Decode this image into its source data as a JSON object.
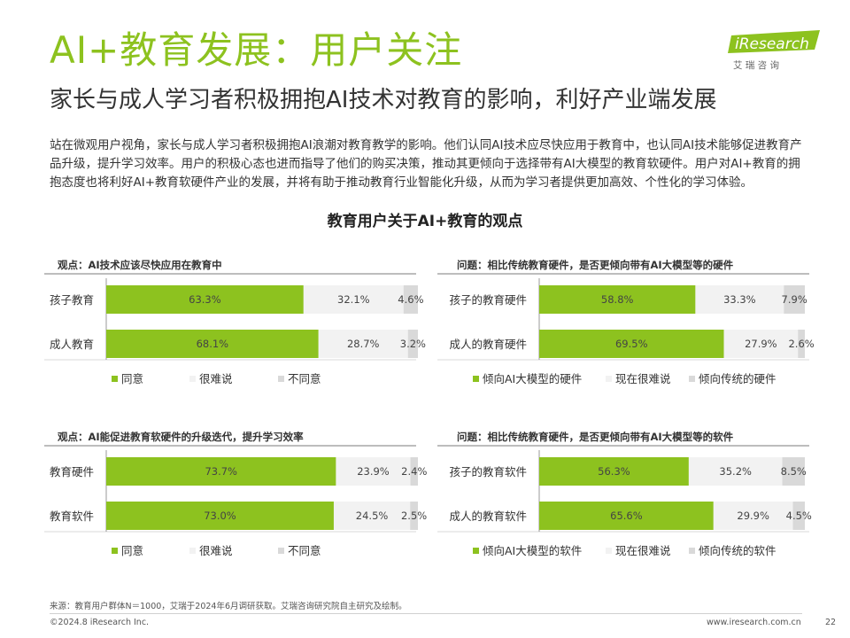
{
  "header": {
    "title": "AI+教育发展：用户关注",
    "subtitle": "家长与成人学习者积极拥抱AI技术对教育的影响，利好产业端发展",
    "logo_text": "iResearch",
    "logo_subtext": "艾 瑞 咨 询"
  },
  "body_text": "站在微观用户视角，家长与成人学习者积极拥抱AI浪潮对教育教学的影响。他们认同AI技术应尽快应用于教育中，也认同AI技术能够促进教育产品升级，提升学习效率。用户的积极心态也进而指导了他们的购买决策，推动其更倾向于选择带有AI大模型的教育软硬件。用户对AI+教育的拥抱态度也将利好AI+教育软硬件产业的发展，并将有助于推动教育行业智能化升级，从而为学习者提供更加高效、个性化的学习体验。",
  "main_chart_title": "教育用户关于AI+教育的观点",
  "colors": {
    "green": "#8dc21f",
    "light_gray": "#f2f2f2",
    "mid_gray": "#d9d9d9",
    "axis": "#999999"
  },
  "chart_data": [
    {
      "type": "bar",
      "stacked": true,
      "orientation": "horizontal",
      "title": "观点：AI技术应该尽快应用在教育中",
      "categories": [
        "孩子教育",
        "成人教育"
      ],
      "series": [
        {
          "name": "同意",
          "values": [
            63.3,
            68.1
          ]
        },
        {
          "name": "很难说",
          "values": [
            32.1,
            28.7
          ]
        },
        {
          "name": "不同意",
          "values": [
            4.6,
            3.2
          ]
        }
      ],
      "labels": [
        [
          "63.3%",
          "32.1%",
          "4.6%"
        ],
        [
          "68.1%",
          "28.7%",
          "3.2%"
        ]
      ],
      "xlim": [
        0,
        100
      ],
      "legend": "bottom"
    },
    {
      "type": "bar",
      "stacked": true,
      "orientation": "horizontal",
      "title": "问题：相比传统教育硬件，是否更倾向带有AI大模型等的硬件",
      "categories": [
        "孩子的教育硬件",
        "成人的教育硬件"
      ],
      "series": [
        {
          "name": "倾向AI大模型的硬件",
          "values": [
            58.8,
            69.5
          ]
        },
        {
          "name": "现在很难说",
          "values": [
            33.3,
            27.9
          ]
        },
        {
          "name": "倾向传统的硬件",
          "values": [
            7.9,
            2.6
          ]
        }
      ],
      "labels": [
        [
          "58.8%",
          "33.3%",
          "7.9%"
        ],
        [
          "69.5%",
          "27.9%",
          "2.6%"
        ]
      ],
      "xlim": [
        0,
        100
      ],
      "legend": "bottom"
    },
    {
      "type": "bar",
      "stacked": true,
      "orientation": "horizontal",
      "title": "观点：AI能促进教育软硬件的升级迭代，提升学习效率",
      "categories": [
        "教育硬件",
        "教育软件"
      ],
      "series": [
        {
          "name": "同意",
          "values": [
            73.7,
            73.0
          ]
        },
        {
          "name": "很难说",
          "values": [
            23.9,
            24.5
          ]
        },
        {
          "name": "不同意",
          "values": [
            2.4,
            2.5
          ]
        }
      ],
      "labels": [
        [
          "73.7%",
          "23.9%",
          "2.4%"
        ],
        [
          "73.0%",
          "24.5%",
          "2.5%"
        ]
      ],
      "xlim": [
        0,
        100
      ],
      "legend": "bottom"
    },
    {
      "type": "bar",
      "stacked": true,
      "orientation": "horizontal",
      "title": "问题：相比传统教育硬件，是否更倾向带有AI大模型等的软件",
      "categories": [
        "孩子的教育软件",
        "成人的教育软件"
      ],
      "series": [
        {
          "name": "倾向AI大模型的软件",
          "values": [
            56.3,
            65.6
          ]
        },
        {
          "name": "现在很难说",
          "values": [
            35.2,
            29.9
          ]
        },
        {
          "name": "倾向传统的软件",
          "values": [
            8.5,
            4.5
          ]
        }
      ],
      "labels": [
        [
          "56.3%",
          "35.2%",
          "8.5%"
        ],
        [
          "65.6%",
          "29.9%",
          "4.5%"
        ]
      ],
      "xlim": [
        0,
        100
      ],
      "legend": "bottom"
    }
  ],
  "footer": {
    "source": "来源：教育用户群体N＝1000，艾瑞于2024年6月调研获取。艾瑞咨询研究院自主研究及绘制。",
    "copyright": "©2024.8 iResearch Inc.",
    "url": "www.iresearch.com.cn",
    "page_number": "22"
  }
}
